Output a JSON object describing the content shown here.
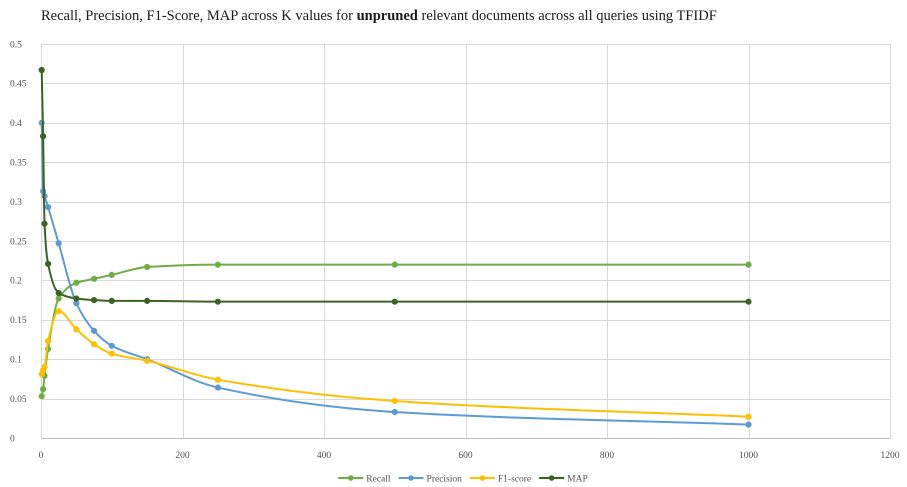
{
  "chart_data": {
    "type": "line",
    "title_segments": [
      {
        "text": "Recall, Precision, F1-Score, MAP across K values for ",
        "bold": false
      },
      {
        "text": "unpruned",
        "bold": true
      },
      {
        "text": " relevant documents across all queries using TFIDF",
        "bold": false
      }
    ],
    "x": [
      1,
      3,
      5,
      10,
      25,
      50,
      75,
      100,
      150,
      250,
      500,
      1000
    ],
    "xlim": [
      0,
      1200
    ],
    "ylim": [
      0,
      0.5
    ],
    "x_ticks": [
      "0",
      "200",
      "400",
      "600",
      "800",
      "1000",
      "1200"
    ],
    "y_ticks": [
      "0",
      "0.05",
      "0.1",
      "0.15",
      "0.2",
      "0.25",
      "0.3",
      "0.35",
      "0.4",
      "0.45",
      "0.5"
    ],
    "grid": {
      "horizontal": true,
      "vertical": true
    },
    "smooth": true,
    "marker": "circle",
    "legend": "bottom",
    "series": [
      {
        "name": "Recall",
        "color": "#70AD47",
        "values": [
          0.053,
          0.062,
          0.079,
          0.113,
          0.177,
          0.197,
          0.202,
          0.207,
          0.217,
          0.22,
          0.22,
          0.22
        ]
      },
      {
        "name": "Precision",
        "color": "#5B9BD5",
        "values": [
          0.4,
          0.313,
          0.307,
          0.293,
          0.247,
          0.171,
          0.136,
          0.117,
          0.1,
          0.064,
          0.033,
          0.017
        ]
      },
      {
        "name": "F1-score",
        "color": "#FFC000",
        "values": [
          0.081,
          0.086,
          0.09,
          0.123,
          0.161,
          0.138,
          0.119,
          0.107,
          0.098,
          0.074,
          0.047,
          0.027
        ]
      },
      {
        "name": "MAP",
        "color": "#3B6324",
        "values": [
          0.467,
          0.383,
          0.272,
          0.221,
          0.184,
          0.177,
          0.175,
          0.174,
          0.174,
          0.173,
          0.173,
          0.173
        ]
      }
    ]
  },
  "colors": {
    "gridline": "#d9d9d9",
    "axis": "#bfbfbf",
    "background": "#ffffff"
  }
}
